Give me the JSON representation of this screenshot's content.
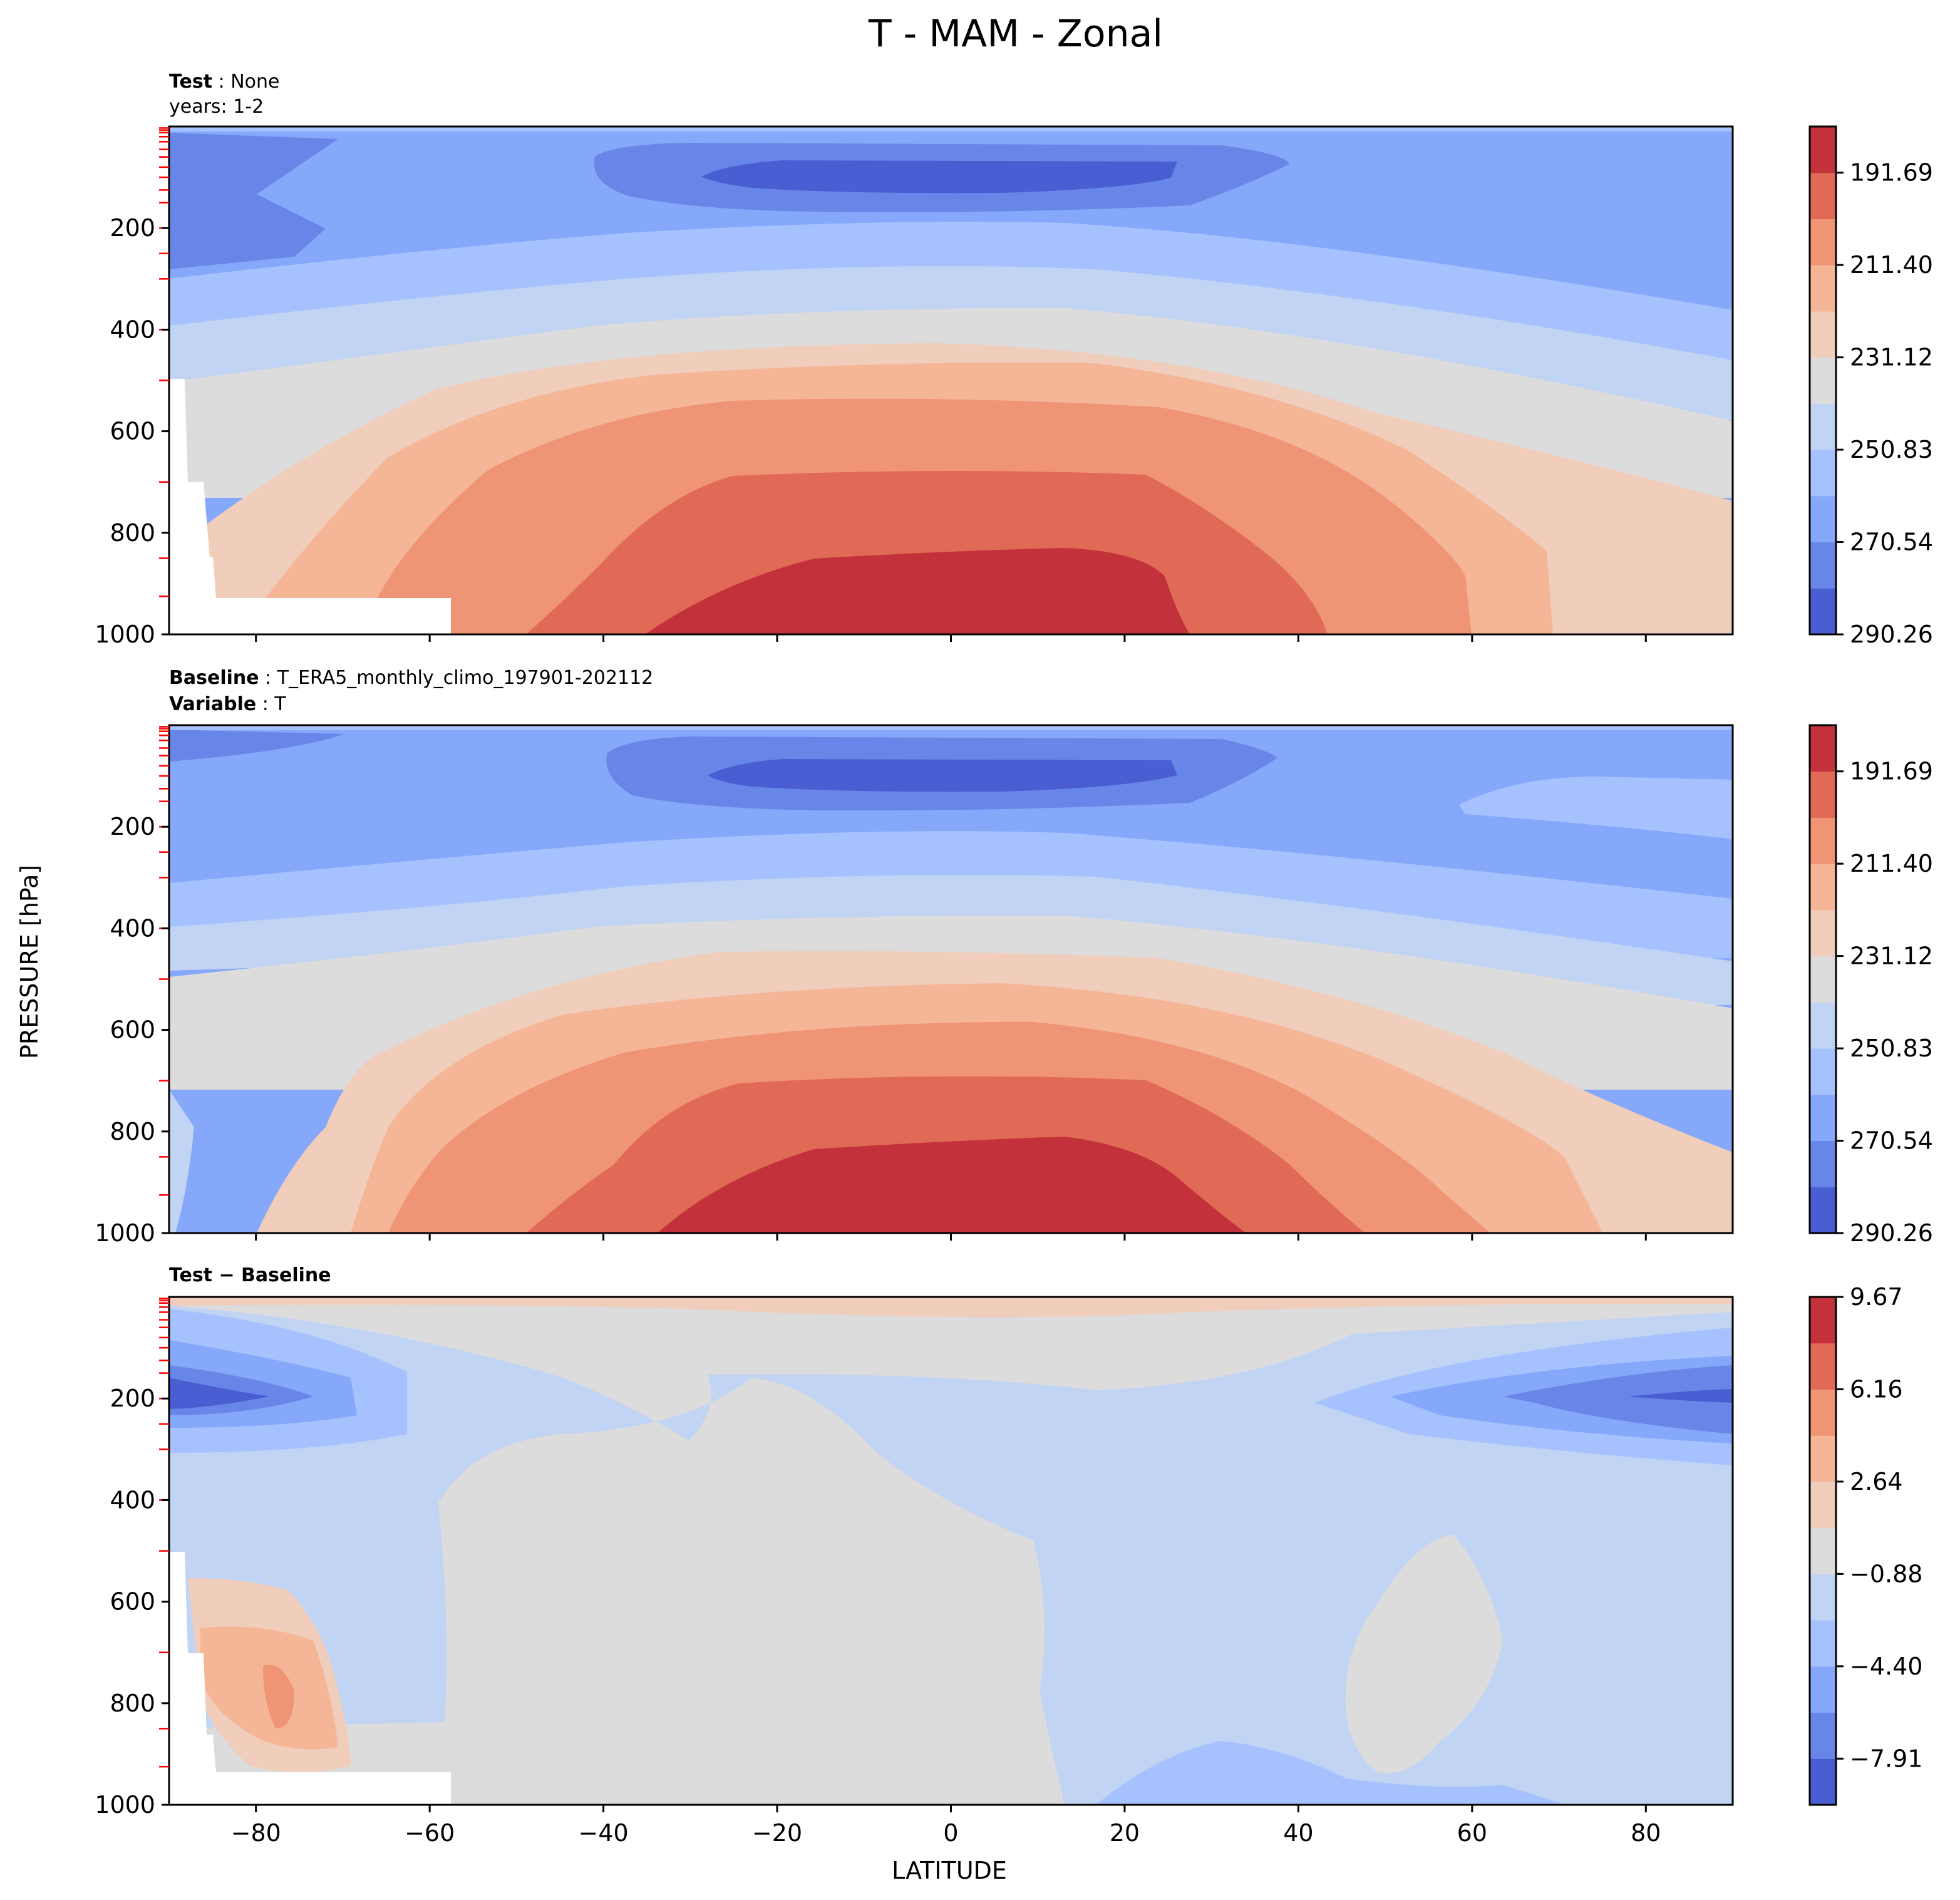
{
  "figure_title": "T - MAM - Zonal",
  "colors": {
    "cmap": [
      "#4a5ed4",
      "#6886e8",
      "#86a8fb",
      "#a5c1fe",
      "#c2d4f3",
      "#dcdcdc",
      "#f1cdbc",
      "#f5b597",
      "#f09476",
      "#e06a55",
      "#c3313a"
    ],
    "missing": "#ffffff",
    "tick_red": "#ff0000",
    "axis": "#000000"
  },
  "labels": {
    "ylabel": "PRESSURE [hPa]",
    "xlabel": "LATITUDE"
  },
  "panels": [
    {
      "id": "test",
      "header_line1_bold": "Test",
      "header_line1_rest": " : None",
      "header_line2_bold": "",
      "header_line2_rest": "years: 1-2"
    },
    {
      "id": "baseline",
      "header_line1_bold": "Baseline",
      "header_line1_rest": " : T_ERA5_monthly_climo_197901-202112",
      "header_line2_bold": "Variable",
      "header_line2_rest": " : T"
    },
    {
      "id": "diff",
      "header_line1_bold": "Test − Baseline",
      "header_line1_rest": "",
      "header_line2_bold": "",
      "header_line2_rest": ""
    }
  ],
  "chart_data": [
    {
      "type": "contourf",
      "panel": "test",
      "title": "Test : None / years: 1-2",
      "xlabel": "LATITUDE",
      "ylabel": "PRESSURE [hPa]",
      "xlim": [
        -90,
        90
      ],
      "ylim": [
        1000,
        0
      ],
      "x_ticks": [
        -80,
        -60,
        -40,
        -20,
        0,
        20,
        40,
        60,
        80
      ],
      "y_ticks": [
        200,
        400,
        600,
        800,
        1000
      ],
      "colorbar_ticks": [
        "191.69",
        "211.40",
        "231.12",
        "250.83",
        "270.54",
        "290.26"
      ],
      "colorbar_range": [
        191.69,
        300.1
      ],
      "field": "T",
      "approx_values_K": {
        "tropical_surface_max": 295,
        "tropical_tropopause_min_100hPa": 196,
        "polar_south_surface": 245,
        "polar_north_surface": 255
      }
    },
    {
      "type": "contourf",
      "panel": "baseline",
      "title": "Baseline : T_ERA5_monthly_climo_197901-202112 / Variable : T",
      "xlabel": "LATITUDE",
      "ylabel": "PRESSURE [hPa]",
      "xlim": [
        -90,
        90
      ],
      "ylim": [
        1000,
        0
      ],
      "x_ticks": [
        -80,
        -60,
        -40,
        -20,
        0,
        20,
        40,
        60,
        80
      ],
      "y_ticks": [
        200,
        400,
        600,
        800,
        1000
      ],
      "colorbar_ticks": [
        "191.69",
        "211.40",
        "231.12",
        "250.83",
        "270.54",
        "290.26"
      ],
      "colorbar_range": [
        191.69,
        300.1
      ],
      "field": "T",
      "approx_values_K": {
        "tropical_surface_max": 296,
        "tropical_tropopause_min_100hPa": 196,
        "polar_south_surface": 240,
        "polar_north_surface": 258
      }
    },
    {
      "type": "contourf",
      "panel": "diff",
      "title": "Test − Baseline",
      "xlabel": "LATITUDE",
      "ylabel": "PRESSURE [hPa]",
      "xlim": [
        -90,
        90
      ],
      "ylim": [
        1000,
        0
      ],
      "x_ticks": [
        -80,
        -60,
        -40,
        -20,
        0,
        20,
        40,
        60,
        80
      ],
      "x_tick_labels": [
        "−80",
        "−60",
        "−40",
        "−20",
        "0",
        "20",
        "40",
        "60",
        "80"
      ],
      "y_ticks": [
        200,
        400,
        600,
        800,
        1000
      ],
      "colorbar_ticks": [
        "9.67",
        "6.16",
        "2.64",
        "−0.88",
        "−4.40",
        "−7.91"
      ],
      "colorbar_range": [
        -9.7,
        9.67
      ],
      "field": "T difference",
      "approx_values_K": {
        "south_polar_200hPa_min": -9,
        "north_polar_200hPa_min": -9,
        "south_polar_700hPa_max": 6,
        "top_level_max": 3
      }
    }
  ]
}
